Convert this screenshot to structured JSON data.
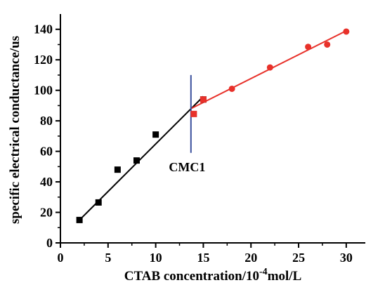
{
  "chart_data": {
    "type": "scatter",
    "xlabel_main": "CTAB concentration/10",
    "xlabel_sup": "-4",
    "xlabel_tail": "mol/L",
    "ylabel": "specific electrical conductance/us",
    "xlim": [
      0,
      32
    ],
    "ylim": [
      0,
      150
    ],
    "xticks": [
      0,
      5,
      10,
      15,
      20,
      25,
      30
    ],
    "yticks": [
      0,
      20,
      40,
      60,
      80,
      100,
      120,
      140
    ],
    "grid": false,
    "series": [
      {
        "marker": "square",
        "color": "#000000",
        "points": [
          [
            2,
            15
          ],
          [
            4,
            26.5
          ],
          [
            6,
            48
          ],
          [
            8,
            54
          ],
          [
            10,
            71
          ],
          [
            15,
            94
          ]
        ]
      },
      {
        "marker": "square",
        "color": "#e8312a",
        "points": [
          [
            14,
            84.5
          ],
          [
            15,
            94
          ]
        ]
      },
      {
        "marker": "circle",
        "color": "#e8312a",
        "points": [
          [
            18,
            101
          ],
          [
            22,
            115
          ],
          [
            26,
            128.5
          ],
          [
            28,
            130
          ],
          [
            30,
            138.5
          ]
        ]
      }
    ],
    "fit_lines": [
      {
        "color": "#000000",
        "from": [
          2,
          15
        ],
        "to": [
          15,
          96
        ]
      },
      {
        "color": "#e8312a",
        "from": [
          13.7,
          88
        ],
        "to": [
          30,
          139
        ]
      }
    ],
    "vline": {
      "x": 13.7,
      "y_range": [
        59,
        110
      ],
      "color": "#3a4f9c"
    },
    "annotation": {
      "text": "CMC1",
      "x": 13.3,
      "y": 47
    }
  }
}
